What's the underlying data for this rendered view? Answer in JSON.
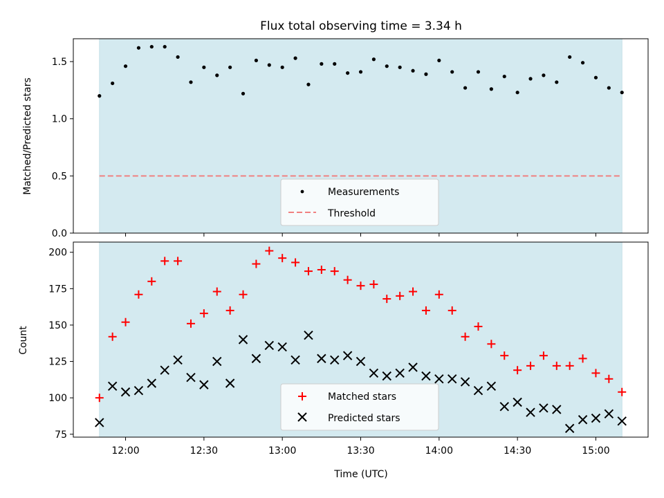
{
  "chart_data": [
    {
      "type": "scatter",
      "title": "Flux total observing time = 3.34 h",
      "ylabel": "Matched/Predicted stars",
      "xlabel": "",
      "x_unit": "time (UTC, HH:MM)",
      "xlim": [
        "11:40",
        "15:20"
      ],
      "ylim": [
        0,
        1.7
      ],
      "yticks": [
        0.0,
        0.5,
        1.0,
        1.5
      ],
      "ytick_labels": [
        "0.0",
        "0.5",
        "1.0",
        "1.5"
      ],
      "shaded_region": {
        "x_start": "11:50",
        "x_end": "15:10",
        "color": "#d4eaf0"
      },
      "legend_position": "bottom-center",
      "series": [
        {
          "name": "Measurements",
          "marker": "dot",
          "color": "#000000",
          "x": [
            "11:50",
            "11:55",
            "12:00",
            "12:05",
            "12:10",
            "12:15",
            "12:20",
            "12:25",
            "12:30",
            "12:35",
            "12:40",
            "12:45",
            "12:50",
            "12:55",
            "13:00",
            "13:05",
            "13:10",
            "13:15",
            "13:20",
            "13:25",
            "13:30",
            "13:35",
            "13:40",
            "13:45",
            "13:50",
            "13:55",
            "14:00",
            "14:05",
            "14:10",
            "14:15",
            "14:20",
            "14:25",
            "14:30",
            "14:35",
            "14:40",
            "14:45",
            "14:50",
            "14:55",
            "15:00",
            "15:05",
            "15:10"
          ],
          "y": [
            1.2,
            1.31,
            1.46,
            1.62,
            1.63,
            1.63,
            1.54,
            1.32,
            1.45,
            1.38,
            1.45,
            1.22,
            1.51,
            1.47,
            1.45,
            1.53,
            1.3,
            1.48,
            1.48,
            1.4,
            1.41,
            1.52,
            1.46,
            1.45,
            1.42,
            1.39,
            1.51,
            1.41,
            1.27,
            1.41,
            1.26,
            1.37,
            1.23,
            1.35,
            1.38,
            1.32,
            1.54,
            1.49,
            1.36,
            1.27,
            1.23
          ]
        },
        {
          "name": "Threshold",
          "marker": "dashed-line",
          "color": "#f08080",
          "y_constant": 0.5
        }
      ]
    },
    {
      "type": "scatter",
      "title": "",
      "ylabel": "Count",
      "xlabel": "Time (UTC)",
      "x_unit": "time (UTC, HH:MM)",
      "xlim": [
        "11:40",
        "15:20"
      ],
      "ylim": [
        73,
        207
      ],
      "yticks": [
        75,
        100,
        125,
        150,
        175,
        200
      ],
      "ytick_labels": [
        "75",
        "100",
        "125",
        "150",
        "175",
        "200"
      ],
      "xticks": [
        "12:00",
        "12:30",
        "13:00",
        "13:30",
        "14:00",
        "14:30",
        "15:00"
      ],
      "xtick_labels": [
        "12:00",
        "12:30",
        "13:00",
        "13:30",
        "14:00",
        "14:30",
        "15:00"
      ],
      "shaded_region": {
        "x_start": "11:50",
        "x_end": "15:10",
        "color": "#d4eaf0"
      },
      "legend_position": "bottom-center",
      "series": [
        {
          "name": "Matched stars",
          "marker": "plus",
          "color": "#ff0000",
          "x": [
            "11:50",
            "11:55",
            "12:00",
            "12:05",
            "12:10",
            "12:15",
            "12:20",
            "12:25",
            "12:30",
            "12:35",
            "12:40",
            "12:45",
            "12:50",
            "12:55",
            "13:00",
            "13:05",
            "13:10",
            "13:15",
            "13:20",
            "13:25",
            "13:30",
            "13:35",
            "13:40",
            "13:45",
            "13:50",
            "13:55",
            "14:00",
            "14:05",
            "14:10",
            "14:15",
            "14:20",
            "14:25",
            "14:30",
            "14:35",
            "14:40",
            "14:45",
            "14:50",
            "14:55",
            "15:00",
            "15:05",
            "15:10"
          ],
          "y": [
            100,
            142,
            152,
            171,
            180,
            194,
            194,
            151,
            158,
            173,
            160,
            171,
            192,
            201,
            196,
            193,
            187,
            188,
            187,
            181,
            177,
            178,
            168,
            170,
            173,
            160,
            171,
            160,
            142,
            149,
            137,
            129,
            119,
            122,
            129,
            122,
            122,
            127,
            117,
            113,
            104
          ]
        },
        {
          "name": "Predicted stars",
          "marker": "x",
          "color": "#000000",
          "x": [
            "11:50",
            "11:55",
            "12:00",
            "12:05",
            "12:10",
            "12:15",
            "12:20",
            "12:25",
            "12:30",
            "12:35",
            "12:40",
            "12:45",
            "12:50",
            "12:55",
            "13:00",
            "13:05",
            "13:10",
            "13:15",
            "13:20",
            "13:25",
            "13:30",
            "13:35",
            "13:40",
            "13:45",
            "13:50",
            "13:55",
            "14:00",
            "14:05",
            "14:10",
            "14:15",
            "14:20",
            "14:25",
            "14:30",
            "14:35",
            "14:40",
            "14:45",
            "14:50",
            "14:55",
            "15:00",
            "15:05",
            "15:10"
          ],
          "y": [
            83,
            108,
            104,
            105,
            110,
            119,
            126,
            114,
            109,
            125,
            110,
            140,
            127,
            136,
            135,
            126,
            143,
            127,
            126,
            129,
            125,
            117,
            115,
            117,
            121,
            115,
            113,
            113,
            111,
            105,
            108,
            94,
            97,
            90,
            93,
            92,
            79,
            85,
            86,
            89,
            84
          ]
        }
      ]
    }
  ]
}
